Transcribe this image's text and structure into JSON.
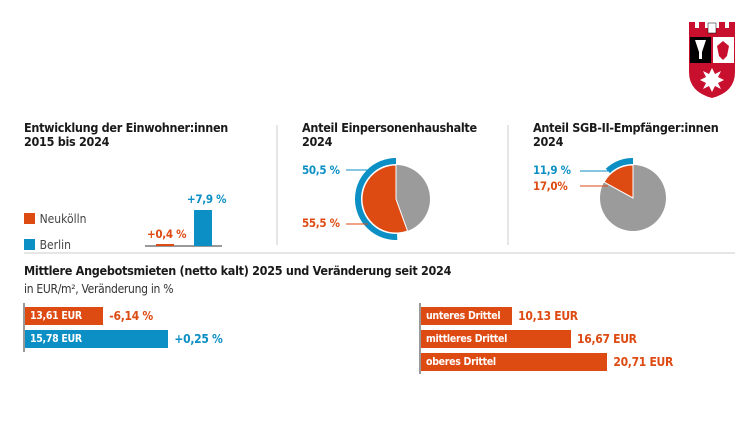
{
  "colors": {
    "neukoelln": "#dd4a12",
    "berlin": "#0b8fc4",
    "rest": "#9b9b9b"
  },
  "chart_data": [
    {
      "type": "bar",
      "title": "Entwicklung der Einwohner:innen",
      "subtitle": "2015 bis 2024",
      "categories": [
        "Neukölln",
        "Berlin"
      ],
      "values": [
        0.4,
        7.9
      ],
      "labels": [
        "+0,4 %",
        "+7,9 %"
      ],
      "legend": [
        "Neukölln",
        "Berlin"
      ],
      "legend_placement": "left"
    },
    {
      "type": "pie",
      "title": "Anteil Einpersonenhaushalte",
      "subtitle": "2024",
      "series": [
        {
          "name": "Neukölln",
          "value": 55.5,
          "label": "55,5 %"
        },
        {
          "name": "Berlin",
          "value": 50.5,
          "label": "50,5 %"
        }
      ]
    },
    {
      "type": "pie",
      "title": "Anteil SGB-II-Empfänger:innen",
      "subtitle": "2024",
      "series": [
        {
          "name": "Neukölln",
          "value": 17.0,
          "label": "17,0%"
        },
        {
          "name": "Berlin",
          "value": 11.9,
          "label": "11,9 %"
        }
      ]
    },
    {
      "type": "bar",
      "orientation": "horizontal",
      "title": "Mittlere Angebotsmieten (netto kalt) 2025 und Veränderung seit 2024",
      "subtitle": "in EUR/m², Veränderung in %",
      "categories": [
        "Neukölln",
        "Berlin"
      ],
      "values": [
        13.61,
        15.78
      ],
      "value_labels": [
        "13,61 EUR",
        "15,78 EUR"
      ],
      "change_labels": [
        "-6,14 %",
        "+0,25 %"
      ]
    },
    {
      "type": "bar",
      "orientation": "horizontal",
      "categories": [
        "unteres Drittel",
        "mittleres Drittel",
        "oberes Drittel"
      ],
      "values": [
        10.13,
        16.67,
        20.71
      ],
      "value_labels": [
        "10,13 EUR",
        "16,67 EUR",
        "20,71 EUR"
      ]
    }
  ],
  "logo": {
    "name": "Wappen Neukölln"
  }
}
